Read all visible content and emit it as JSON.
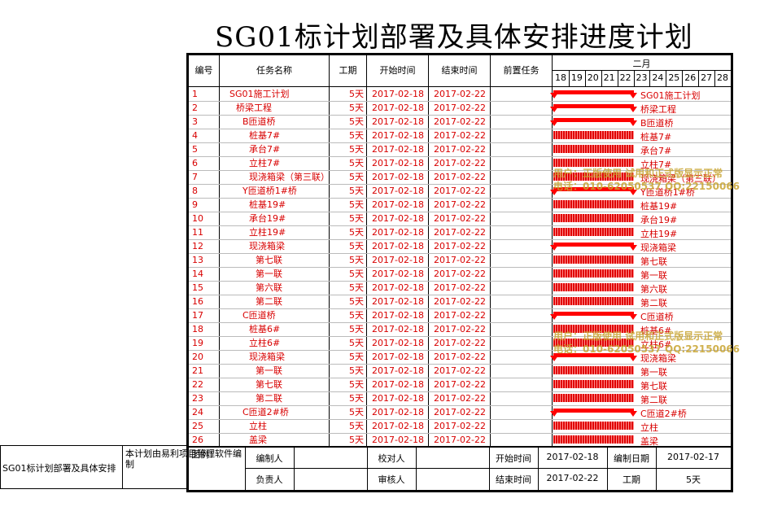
{
  "title": "SG01标计划部署及具体安排进度计划",
  "headers": {
    "id": "编号",
    "name": "任务名称",
    "duration": "工期",
    "start": "开始时间",
    "end": "结束时间",
    "pred": "前置任务"
  },
  "gantt": {
    "month": "二月",
    "days": [
      "18",
      "19",
      "20",
      "21",
      "22",
      "23",
      "24",
      "25",
      "26",
      "27",
      "28"
    ]
  },
  "tasks": [
    {
      "id": "1",
      "name": "SG01施工计划",
      "dur": "5天",
      "start": "2017-02-18",
      "end": "2017-02-22",
      "type": "summary",
      "indent": 0
    },
    {
      "id": "2",
      "name": "桥梁工程",
      "dur": "5天",
      "start": "2017-02-18",
      "end": "2017-02-22",
      "type": "summary",
      "indent": 1
    },
    {
      "id": "3",
      "name": "B匝道桥",
      "dur": "5天",
      "start": "2017-02-18",
      "end": "2017-02-22",
      "type": "summary",
      "indent": 2
    },
    {
      "id": "4",
      "name": "桩基7#",
      "dur": "5天",
      "start": "2017-02-18",
      "end": "2017-02-22",
      "type": "task",
      "indent": 3
    },
    {
      "id": "5",
      "name": "承台7#",
      "dur": "5天",
      "start": "2017-02-18",
      "end": "2017-02-22",
      "type": "task",
      "indent": 3
    },
    {
      "id": "6",
      "name": "立柱7#",
      "dur": "5天",
      "start": "2017-02-18",
      "end": "2017-02-22",
      "type": "task",
      "indent": 3
    },
    {
      "id": "7",
      "name": "现浇箱梁（第三联）",
      "dur": "5天",
      "start": "2017-02-18",
      "end": "2017-02-22",
      "type": "task",
      "indent": 3
    },
    {
      "id": "8",
      "name": "Y匝道桥1#桥",
      "dur": "5天",
      "start": "2017-02-18",
      "end": "2017-02-22",
      "type": "summary",
      "indent": 2
    },
    {
      "id": "9",
      "name": "桩基19#",
      "dur": "5天",
      "start": "2017-02-18",
      "end": "2017-02-22",
      "type": "task",
      "indent": 3
    },
    {
      "id": "10",
      "name": "承台19#",
      "dur": "5天",
      "start": "2017-02-18",
      "end": "2017-02-22",
      "type": "task",
      "indent": 3
    },
    {
      "id": "11",
      "name": "立柱19#",
      "dur": "5天",
      "start": "2017-02-18",
      "end": "2017-02-22",
      "type": "task",
      "indent": 3
    },
    {
      "id": "12",
      "name": "现浇箱梁",
      "dur": "5天",
      "start": "2017-02-18",
      "end": "2017-02-22",
      "type": "summary",
      "indent": 3
    },
    {
      "id": "13",
      "name": "第七联",
      "dur": "5天",
      "start": "2017-02-18",
      "end": "2017-02-22",
      "type": "task",
      "indent": 4
    },
    {
      "id": "14",
      "name": "第一联",
      "dur": "5天",
      "start": "2017-02-18",
      "end": "2017-02-22",
      "type": "task",
      "indent": 4
    },
    {
      "id": "15",
      "name": "第六联",
      "dur": "5天",
      "start": "2017-02-18",
      "end": "2017-02-22",
      "type": "task",
      "indent": 4
    },
    {
      "id": "16",
      "name": "第二联",
      "dur": "5天",
      "start": "2017-02-18",
      "end": "2017-02-22",
      "type": "task",
      "indent": 4
    },
    {
      "id": "17",
      "name": "C匝道桥",
      "dur": "5天",
      "start": "2017-02-18",
      "end": "2017-02-22",
      "type": "summary",
      "indent": 2
    },
    {
      "id": "18",
      "name": "桩基6#",
      "dur": "5天",
      "start": "2017-02-18",
      "end": "2017-02-22",
      "type": "task",
      "indent": 3
    },
    {
      "id": "19",
      "name": "立柱6#",
      "dur": "5天",
      "start": "2017-02-18",
      "end": "2017-02-22",
      "type": "task",
      "indent": 3
    },
    {
      "id": "20",
      "name": "现浇箱梁",
      "dur": "5天",
      "start": "2017-02-18",
      "end": "2017-02-22",
      "type": "summary",
      "indent": 3
    },
    {
      "id": "21",
      "name": "第一联",
      "dur": "5天",
      "start": "2017-02-18",
      "end": "2017-02-22",
      "type": "task",
      "indent": 4
    },
    {
      "id": "22",
      "name": "第七联",
      "dur": "5天",
      "start": "2017-02-18",
      "end": "2017-02-22",
      "type": "task",
      "indent": 4
    },
    {
      "id": "23",
      "name": "第二联",
      "dur": "5天",
      "start": "2017-02-18",
      "end": "2017-02-22",
      "type": "task",
      "indent": 4
    },
    {
      "id": "24",
      "name": "C匝道2#桥",
      "dur": "5天",
      "start": "2017-02-18",
      "end": "2017-02-22",
      "type": "summary",
      "indent": 2
    },
    {
      "id": "25",
      "name": "立柱",
      "dur": "5天",
      "start": "2017-02-18",
      "end": "2017-02-22",
      "type": "task",
      "indent": 3
    },
    {
      "id": "26",
      "name": "盖梁",
      "dur": "5天",
      "start": "2017-02-18",
      "end": "2017-02-22",
      "type": "task",
      "indent": 3
    }
  ],
  "watermark": {
    "line1": "用户：正版使用 试用和正式版显示正常",
    "line2": "电话：010-62050537 QQ:22150066"
  },
  "footer": {
    "legend": "图例：",
    "compiler": "编制人",
    "checker": "校对人",
    "start_label": "开始时间",
    "start_value": "2017-02-18",
    "date_label": "编制日期",
    "date_value": "2017-02-17",
    "owner": "负责人",
    "reviewer": "审核人",
    "end_label": "结束时间",
    "end_value": "2017-02-22",
    "dur_label": "工期",
    "dur_value": "5天"
  },
  "side": {
    "caption": "SG01标计划部署及具体安排",
    "note": "本计划由易利项目管理软件编制"
  }
}
